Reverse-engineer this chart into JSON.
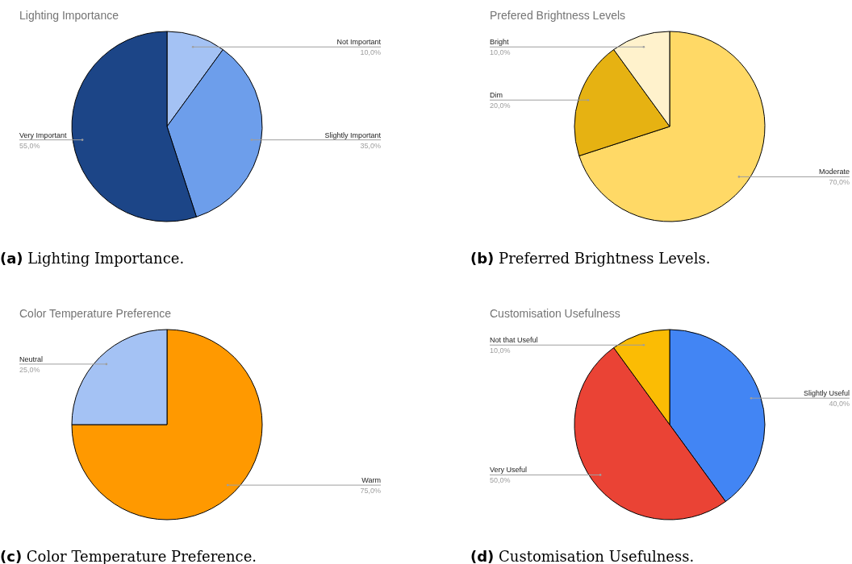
{
  "chart_data": [
    {
      "type": "pie",
      "title": "Lighting Importance",
      "categories": [
        "Not Important",
        "Slightly Important",
        "Very Important"
      ],
      "values": [
        10,
        35,
        55
      ],
      "colors": [
        "#a4c2f4",
        "#6d9eeb",
        "#1c4587"
      ],
      "value_labels": [
        "10,0%",
        "35,0%",
        "55,0%"
      ],
      "annotations": [
        "(a) Lighting Importance."
      ]
    },
    {
      "type": "pie",
      "title": "Prefered Brightness Levels",
      "categories": [
        "Moderate",
        "Dim",
        "Bright"
      ],
      "values": [
        70,
        20,
        10
      ],
      "colors": [
        "#ffd966",
        "#e6b212",
        "#fff2cc"
      ],
      "value_labels": [
        "70,0%",
        "20,0%",
        "10,0%"
      ],
      "annotations": [
        "(b) Preferred Brightness Levels."
      ]
    },
    {
      "type": "pie",
      "title": "Color Temperature Preference",
      "categories": [
        "Warm",
        "Neutral"
      ],
      "values": [
        75,
        25
      ],
      "colors": [
        "#ff9900",
        "#a4c2f4"
      ],
      "value_labels": [
        "75,0%",
        "25,0%"
      ],
      "annotations": [
        "(c) Color Temperature Preference."
      ]
    },
    {
      "type": "pie",
      "title": "Customisation Usefulness",
      "categories": [
        "Slightly Useful",
        "Very Useful",
        "Not that Useful"
      ],
      "values": [
        40,
        50,
        10
      ],
      "colors": [
        "#4285f4",
        "#ea4335",
        "#fbbc04"
      ],
      "value_labels": [
        "40,0%",
        "50,0%",
        "10,0%"
      ],
      "annotations": [
        "(d) Customisation Usefulness."
      ]
    }
  ]
}
